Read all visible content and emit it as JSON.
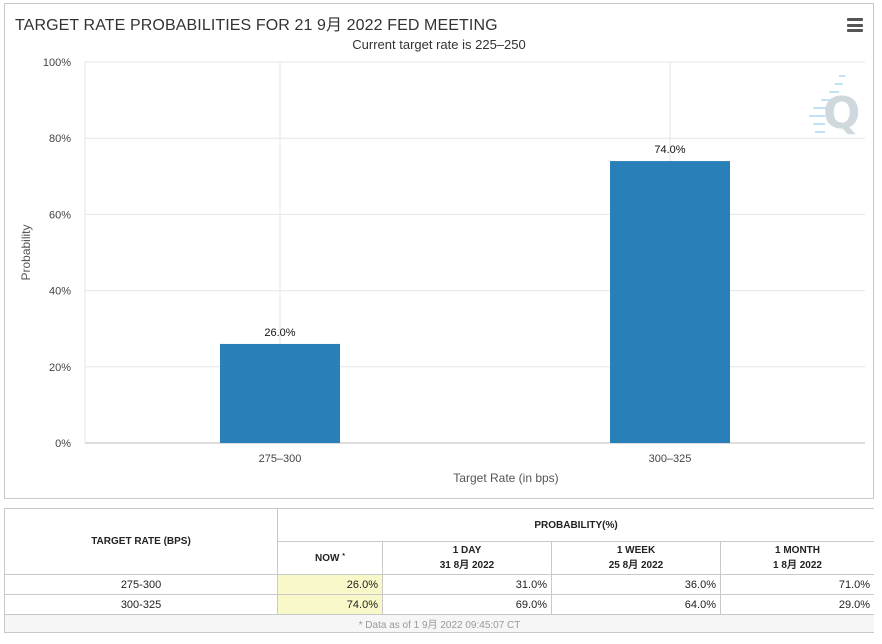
{
  "header": {
    "title": "TARGET RATE PROBABILITIES FOR 21 9月 2022 FED MEETING",
    "subtitle": "Current target rate is 225–250"
  },
  "icons": {
    "menu": "hamburger-menu-icon",
    "watermark": "q-logo-watermark"
  },
  "colors": {
    "bar": "#2980b9",
    "now_cell": "#f8f8c8"
  },
  "chart_data": {
    "type": "bar",
    "title": "TARGET RATE PROBABILITIES FOR 21 9月 2022 FED MEETING",
    "subtitle": "Current target rate is 225–250",
    "categories": [
      "275–300",
      "300–325"
    ],
    "values": [
      26.0,
      74.0
    ],
    "data_labels": [
      "26.0%",
      "74.0%"
    ],
    "xlabel": "Target Rate (in bps)",
    "ylabel": "Probability",
    "ylim": [
      0,
      100
    ],
    "yticks": [
      0,
      20,
      40,
      60,
      80,
      100
    ],
    "ytick_labels": [
      "0%",
      "20%",
      "40%",
      "60%",
      "80%",
      "100%"
    ],
    "grid": true,
    "legend": "none"
  },
  "table": {
    "col_target": "TARGET RATE (BPS)",
    "col_prob": "PROBABILITY(%)",
    "col_now": "NOW",
    "now_marker": "*",
    "cols": [
      {
        "label": "1 DAY",
        "date": "31 8月 2022"
      },
      {
        "label": "1 WEEK",
        "date": "25 8月 2022"
      },
      {
        "label": "1 MONTH",
        "date": "1 8月 2022"
      }
    ],
    "rows": [
      {
        "rate": "275-300",
        "now": "26.0%",
        "vals": [
          "31.0%",
          "36.0%",
          "71.0%"
        ]
      },
      {
        "rate": "300-325",
        "now": "74.0%",
        "vals": [
          "69.0%",
          "64.0%",
          "29.0%"
        ]
      }
    ],
    "footnote": "* Data as of 1 9月 2022 09:45:07 CT"
  }
}
